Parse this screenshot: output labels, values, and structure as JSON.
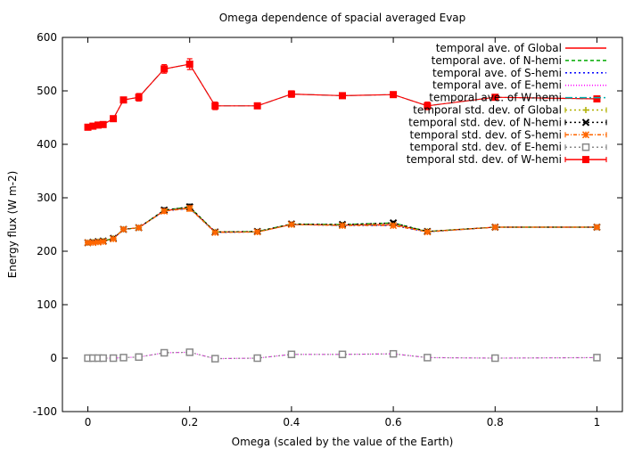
{
  "chart_data": {
    "type": "line",
    "title": "Omega dependence of spacial averaged Evap",
    "xlabel": "Omega (scaled by the value of the Earth)",
    "ylabel": "Energy flux (W m-2)",
    "xlim": [
      -0.05,
      1.05
    ],
    "ylim": [
      -100,
      600
    ],
    "xticks": [
      0,
      0.2,
      0.4,
      0.6,
      0.8,
      1
    ],
    "xtick_labels": [
      "0",
      "0.2",
      "0.4",
      "0.6",
      "0.8",
      "1"
    ],
    "yticks": [
      -100,
      0,
      100,
      200,
      300,
      400,
      500,
      600
    ],
    "ytick_labels": [
      "-100",
      "0",
      "100",
      "200",
      "300",
      "400",
      "500",
      "600"
    ],
    "grid": false,
    "legend_position": "top-right",
    "x": [
      0,
      0.01,
      0.02,
      0.03,
      0.05,
      0.07,
      0.1,
      0.15,
      0.2,
      0.25,
      0.333,
      0.4,
      0.5,
      0.6,
      0.667,
      0.8,
      1.0
    ],
    "series": [
      {
        "name": "temporal ave. of Global",
        "color": "#ff0000",
        "dash": "solid",
        "values": [
          216,
          217,
          218,
          219,
          224,
          241,
          244,
          276,
          281,
          236,
          236,
          250,
          249,
          250,
          237,
          245,
          245
        ]
      },
      {
        "name": "temporal ave. of N-hemi",
        "color": "#00aa00",
        "dash": "4,3",
        "values": [
          216,
          217,
          218,
          219,
          224,
          241,
          244,
          277,
          283,
          236,
          237,
          251,
          250,
          253,
          237,
          245,
          245
        ]
      },
      {
        "name": "temporal ave. of S-hemi",
        "color": "#0000ff",
        "dash": "2,3",
        "values": [
          216,
          216,
          217,
          218,
          223,
          241,
          244,
          275,
          280,
          235,
          236,
          250,
          248,
          248,
          236,
          245,
          245
        ]
      },
      {
        "name": "temporal ave. of E-hemi",
        "color": "#ff00ff",
        "dash": "1,2",
        "values": [
          0,
          0,
          0,
          0,
          0,
          1,
          2,
          10,
          11,
          -1,
          0,
          7,
          7,
          8,
          1,
          0,
          1
        ]
      },
      {
        "name": "temporal ave. of W-hemi",
        "color": "#00b0b0",
        "dash": "8,3,2,3",
        "values": [
          432,
          434,
          436,
          437,
          448,
          483,
          488,
          541,
          550,
          472,
          472,
          494,
          491,
          493,
          472,
          488,
          485
        ]
      },
      {
        "name": "temporal std. dev. of Global",
        "color": "#b0b000",
        "dash": "2,3",
        "marker": "plus",
        "values": [
          216,
          217,
          218,
          219,
          224,
          241,
          244,
          276,
          281,
          236,
          236,
          250,
          249,
          250,
          237,
          245,
          245
        ],
        "err": [
          2,
          2,
          2,
          2,
          2,
          3,
          3,
          4,
          5,
          3,
          3,
          3,
          3,
          3,
          3,
          3,
          3
        ]
      },
      {
        "name": "temporal std. dev. of N-hemi",
        "color": "#000000",
        "dash": "2,3",
        "marker": "cross",
        "values": [
          216,
          217,
          218,
          219,
          224,
          241,
          244,
          277,
          283,
          236,
          237,
          251,
          250,
          253,
          237,
          245,
          245
        ],
        "err": [
          2,
          2,
          2,
          2,
          2,
          3,
          3,
          4,
          5,
          3,
          3,
          3,
          3,
          3,
          3,
          3,
          3
        ]
      },
      {
        "name": "temporal std. dev. of S-hemi",
        "color": "#ff6600",
        "dash": "4,2,1,2",
        "marker": "star",
        "values": [
          216,
          216,
          217,
          218,
          223,
          241,
          244,
          275,
          280,
          235,
          236,
          250,
          248,
          248,
          236,
          245,
          245
        ],
        "err": [
          2,
          2,
          2,
          2,
          2,
          3,
          3,
          4,
          5,
          3,
          3,
          3,
          3,
          3,
          3,
          3,
          3
        ]
      },
      {
        "name": "temporal std. dev. of E-hemi",
        "color": "#888888",
        "dash": "2,3",
        "marker": "square-open",
        "values": [
          0,
          0,
          0,
          0,
          0,
          1,
          2,
          10,
          11,
          -1,
          0,
          7,
          7,
          8,
          1,
          0,
          1
        ],
        "err": [
          2,
          2,
          2,
          2,
          2,
          2,
          2,
          3,
          3,
          2,
          2,
          2,
          2,
          2,
          2,
          2,
          2
        ]
      },
      {
        "name": "temporal std. dev. of W-hemi",
        "color": "#ff0000",
        "dash": "solid",
        "marker": "square-filled",
        "values": [
          432,
          434,
          436,
          437,
          448,
          483,
          488,
          541,
          550,
          472,
          472,
          494,
          491,
          493,
          472,
          488,
          485
        ],
        "err": [
          3,
          3,
          3,
          3,
          4,
          5,
          7,
          8,
          10,
          7,
          5,
          6,
          5,
          4,
          7,
          4,
          3
        ]
      }
    ]
  }
}
